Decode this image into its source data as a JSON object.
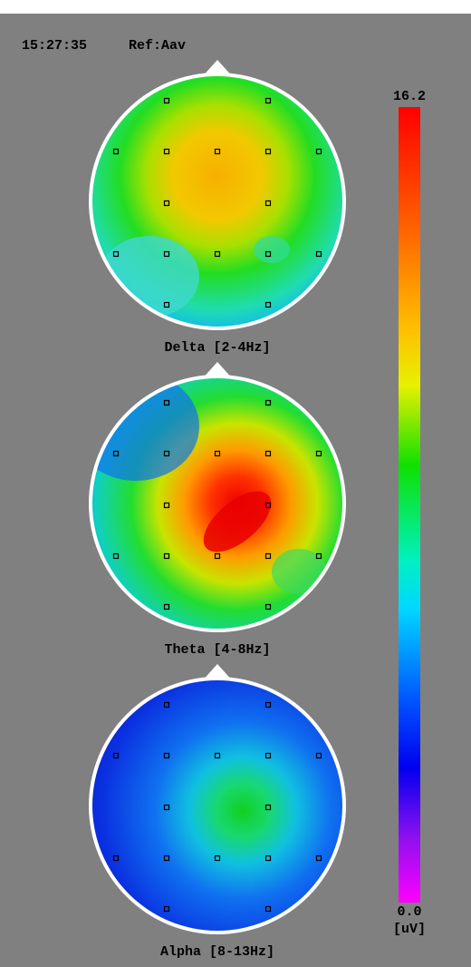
{
  "header": {
    "time": "15:27:35",
    "reference": "Ref:Aav"
  },
  "maps": [
    {
      "label": "Delta [2-4Hz]"
    },
    {
      "label": "Theta [4-8Hz]"
    },
    {
      "label": "Alpha [8-13Hz]"
    }
  ],
  "colorbar": {
    "max_label": "16.2",
    "min_label": "0.0",
    "unit": "[uV]"
  }
}
